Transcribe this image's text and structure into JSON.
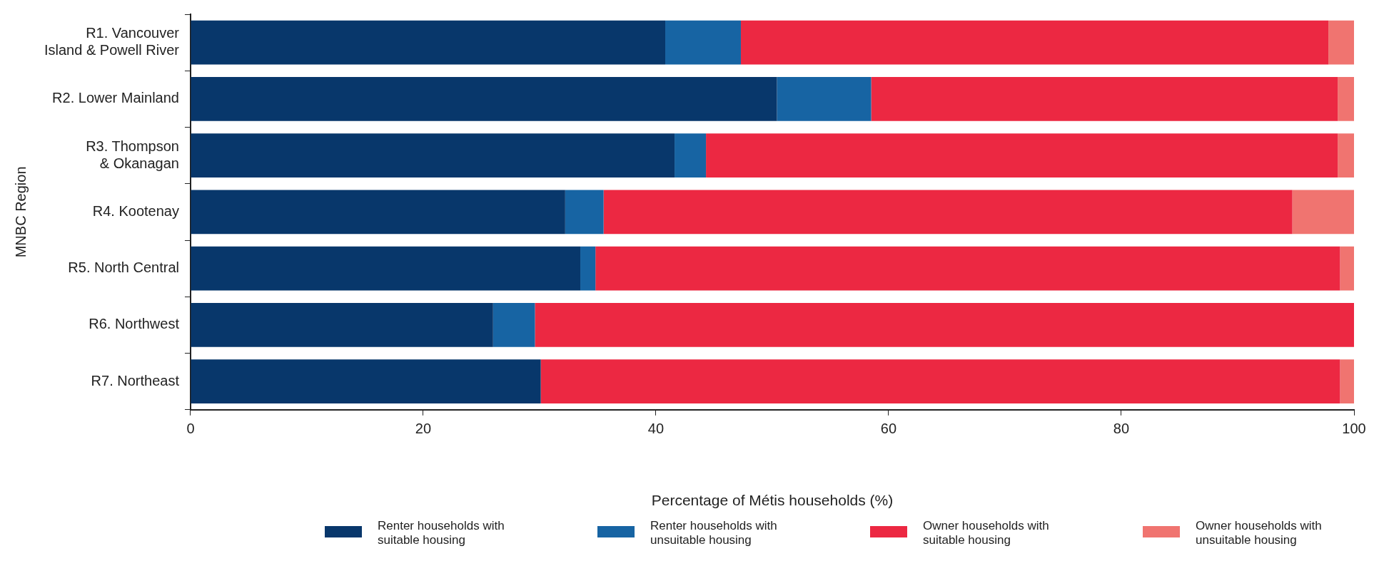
{
  "chart_data": {
    "type": "bar",
    "orientation": "horizontal",
    "stacked": true,
    "xlabel": "Percentage of Métis households (%)",
    "ylabel": "MNBC Region",
    "categories": [
      "R1. Vancouver Island & Powell River",
      "R2. Lower Mainland",
      "R3. Thompson & Okanagan",
      "R4. Kootenay",
      "R5. North Central",
      "R6. Northwest",
      "R7. Northeast"
    ],
    "series": [
      {
        "name": "Renter households with suitable housing",
        "color": "#08376b",
        "values": [
          40.8,
          50.4,
          41.6,
          32.2,
          33.5,
          26.0,
          30.1
        ]
      },
      {
        "name": "Renter households with unsuitable housing",
        "color": "#1764a3",
        "values": [
          6.5,
          8.1,
          2.7,
          3.3,
          1.3,
          3.6,
          0
        ]
      },
      {
        "name": "Owner households with suitable housing",
        "color": "#ec2842",
        "values": [
          50.5,
          40.1,
          54.3,
          59.2,
          64.0,
          70.4,
          68.7
        ]
      },
      {
        "name": "Owner households with unsuitable housing",
        "color": "#f07470",
        "values": [
          2.2,
          1.4,
          1.4,
          5.3,
          1.2,
          0,
          1.2
        ]
      }
    ],
    "xlim": [
      0,
      100
    ],
    "xticks": [
      0,
      20,
      40,
      60,
      80,
      100
    ],
    "grid": false,
    "legend": "bottom"
  }
}
